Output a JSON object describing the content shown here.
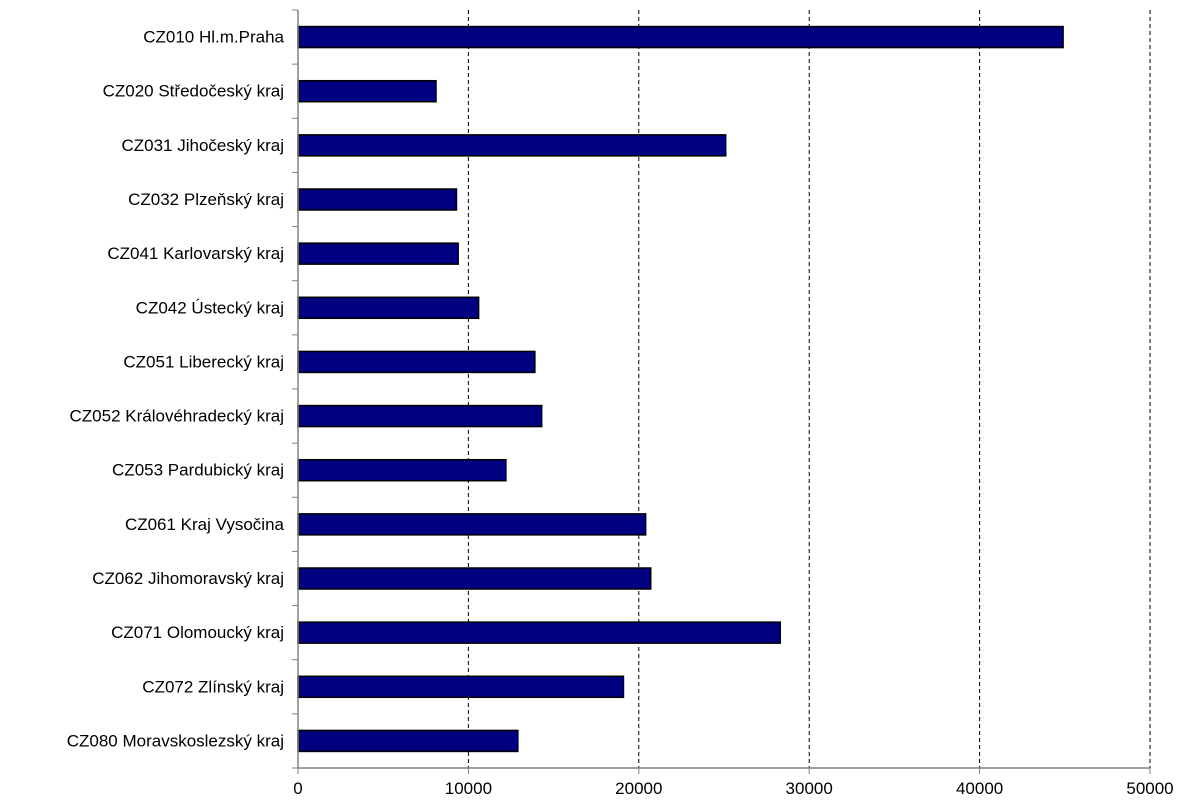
{
  "chart_data": {
    "type": "bar",
    "orientation": "horizontal",
    "title": "",
    "xlabel": "",
    "ylabel": "",
    "categories": [
      "CZ010 Hl.m.Praha",
      "CZ020 Středočeský kraj",
      "CZ031 Jihočeský kraj",
      "CZ032 Plzeňský kraj",
      "CZ041 Karlovarský kraj",
      "CZ042 Ústecký kraj",
      "CZ051 Liberecký kraj",
      "CZ052 Královéhradecký kraj",
      "CZ053 Pardubický kraj",
      "CZ061 Kraj Vysočina",
      "CZ062 Jihomoravský kraj",
      "CZ071 Olomoucký kraj",
      "CZ072 Zlínský kraj",
      "CZ080 Moravskoslezský kraj"
    ],
    "values": [
      44900,
      8100,
      25100,
      9300,
      9400,
      10600,
      13900,
      14300,
      12200,
      20400,
      20700,
      28300,
      19100,
      12900
    ],
    "xlim": [
      0,
      50000
    ],
    "xticks": [
      0,
      10000,
      20000,
      30000,
      40000,
      50000
    ],
    "xtick_labels": [
      "0",
      "10000",
      "20000",
      "30000",
      "40000",
      "50000"
    ],
    "grid": "vertical dashed",
    "legend": "none",
    "colors": {
      "bar_fill": "#000080",
      "bar_stroke": "#000000",
      "axis": "#808080",
      "gridline": "#000000",
      "background": "#ffffff"
    }
  }
}
